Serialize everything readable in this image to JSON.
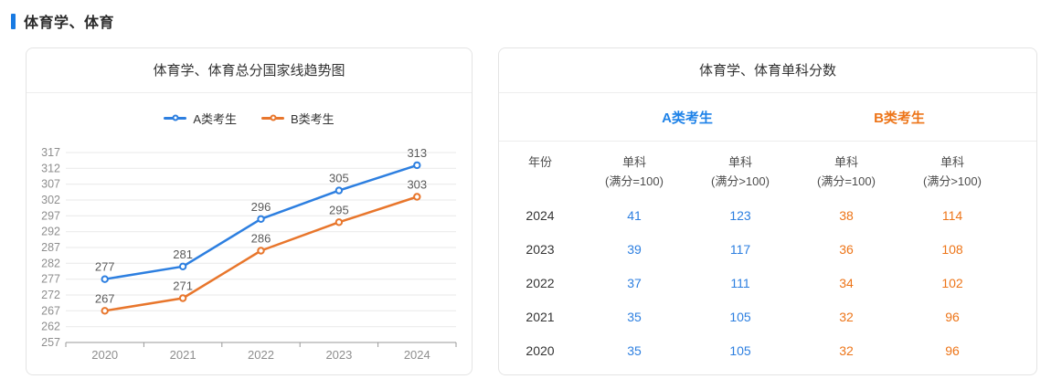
{
  "page": {
    "header_title": "体育学、体育",
    "accent_color": "#187ae2"
  },
  "chart_panel": {
    "title": "体育学、体育总分国家线趋势图",
    "legend": [
      {
        "name": "A类考生",
        "color": "#2d7fe0"
      },
      {
        "name": "B类考生",
        "color": "#e8762c"
      }
    ]
  },
  "chart_data": [
    {
      "type": "line",
      "title": "体育学、体育总分国家线趋势图",
      "x": [
        "2020",
        "2021",
        "2022",
        "2023",
        "2024"
      ],
      "series": [
        {
          "name": "A类考生",
          "color": "#2d7fe0",
          "values": [
            277,
            281,
            296,
            305,
            313
          ]
        },
        {
          "name": "B类考生",
          "color": "#e8762c",
          "values": [
            267,
            271,
            286,
            295,
            303
          ]
        }
      ],
      "ylim": [
        257,
        317
      ],
      "ytick_step": 5,
      "ytick_labels": [
        257,
        262,
        267,
        272,
        277,
        282,
        287,
        292,
        297,
        302,
        307,
        312,
        317
      ],
      "grid": true,
      "legend_position": "top",
      "point_labels_shown": true
    },
    {
      "type": "table",
      "title": "体育学、体育单科分数",
      "group_headers": [
        "A类考生",
        "B类考生"
      ],
      "columns": [
        "年份",
        "单科(满分=100)",
        "单科(满分>100)",
        "单科(满分=100)",
        "单科(满分>100)"
      ],
      "rows": [
        [
          "2024",
          "41",
          "123",
          "38",
          "114"
        ],
        [
          "2023",
          "39",
          "117",
          "36",
          "108"
        ],
        [
          "2022",
          "37",
          "111",
          "34",
          "102"
        ],
        [
          "2021",
          "35",
          "105",
          "32",
          "96"
        ],
        [
          "2020",
          "35",
          "105",
          "32",
          "96"
        ]
      ]
    }
  ],
  "table_panel": {
    "title": "体育学、体育单科分数",
    "group_headers": [
      {
        "label": "A类考生",
        "color": "#1e82e8"
      },
      {
        "label": "B类考生",
        "color": "#ed7519"
      }
    ],
    "columns": [
      {
        "label": "年份",
        "sub": ""
      },
      {
        "label": "单科",
        "sub": "(满分=100)"
      },
      {
        "label": "单科",
        "sub": "(满分>100)"
      },
      {
        "label": "单科",
        "sub": "(满分=100)"
      },
      {
        "label": "单科",
        "sub": "(满分>100)"
      }
    ],
    "colors": {
      "a": "#2d7fe0",
      "b": "#ed7519",
      "year": "#333333"
    },
    "rows": [
      {
        "year": "2024",
        "values": [
          "41",
          "123",
          "38",
          "114"
        ]
      },
      {
        "year": "2023",
        "values": [
          "39",
          "117",
          "36",
          "108"
        ]
      },
      {
        "year": "2022",
        "values": [
          "37",
          "111",
          "34",
          "102"
        ]
      },
      {
        "year": "2021",
        "values": [
          "35",
          "105",
          "32",
          "96"
        ]
      },
      {
        "year": "2020",
        "values": [
          "35",
          "105",
          "32",
          "96"
        ]
      }
    ]
  },
  "chart_style": {
    "grid_color": "#e9e9e9",
    "axis_color": "#999999",
    "axis_label_color": "#8e8e8e",
    "point_label_color": "#5a5a5a"
  }
}
